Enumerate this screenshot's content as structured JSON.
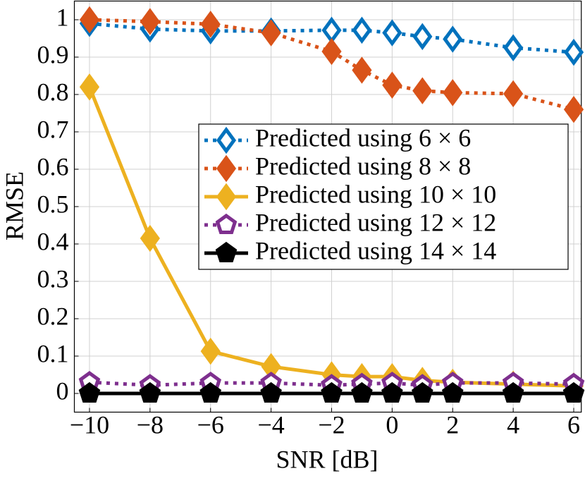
{
  "chart_data": {
    "type": "line",
    "xlabel": "SNR [dB]",
    "ylabel": "RMSE",
    "x": [
      -10,
      -8,
      -6,
      -4,
      -2,
      -1,
      0,
      1,
      2,
      4,
      6
    ],
    "series": [
      {
        "name": "Predicted using 6 × 6",
        "color": "#0072bd",
        "dash": "dotted",
        "marker": "diamond",
        "filled": false,
        "values": [
          0.99,
          0.975,
          0.97,
          0.97,
          0.972,
          0.972,
          0.965,
          0.955,
          0.948,
          0.925,
          0.913
        ]
      },
      {
        "name": "Predicted using 8 × 8",
        "color": "#d95319",
        "dash": "dotted",
        "marker": "diamond",
        "filled": true,
        "values": [
          1.0,
          0.995,
          0.988,
          0.965,
          0.915,
          0.865,
          0.825,
          0.81,
          0.805,
          0.802,
          0.76
        ]
      },
      {
        "name": "Predicted using 10 × 10",
        "color": "#edb120",
        "dash": "solid",
        "marker": "diamond",
        "filled": true,
        "values": [
          0.82,
          0.415,
          0.113,
          0.072,
          0.05,
          0.045,
          0.045,
          0.035,
          0.03,
          0.025,
          0.02
        ]
      },
      {
        "name": "Predicted using 12 × 12",
        "color": "#7e2f8e",
        "dash": "dotted",
        "marker": "pentagon",
        "filled": false,
        "values": [
          0.03,
          0.022,
          0.028,
          0.028,
          0.022,
          0.025,
          0.028,
          0.022,
          0.028,
          0.028,
          0.025
        ]
      },
      {
        "name": "Predicted using 14 × 14",
        "color": "#000000",
        "dash": "solid",
        "marker": "pentagon",
        "filled": true,
        "values": [
          0,
          0,
          0,
          0,
          0,
          0,
          0,
          0,
          0,
          0,
          0
        ]
      }
    ],
    "xlim": [
      -10.5,
      6.25
    ],
    "xticks": [
      {
        "value": -10,
        "label": "−10"
      },
      {
        "value": -8,
        "label": "−8"
      },
      {
        "value": -6,
        "label": "−6"
      },
      {
        "value": -4,
        "label": "−4"
      },
      {
        "value": -2,
        "label": "−2"
      },
      0,
      2,
      4,
      6
    ],
    "ylim": [
      -0.05,
      1.05
    ],
    "yticks": [
      0,
      0.1,
      0.2,
      0.3,
      0.4,
      0.5,
      0.6,
      0.7,
      0.8,
      0.9,
      1
    ],
    "grid": true,
    "legend": "right"
  }
}
